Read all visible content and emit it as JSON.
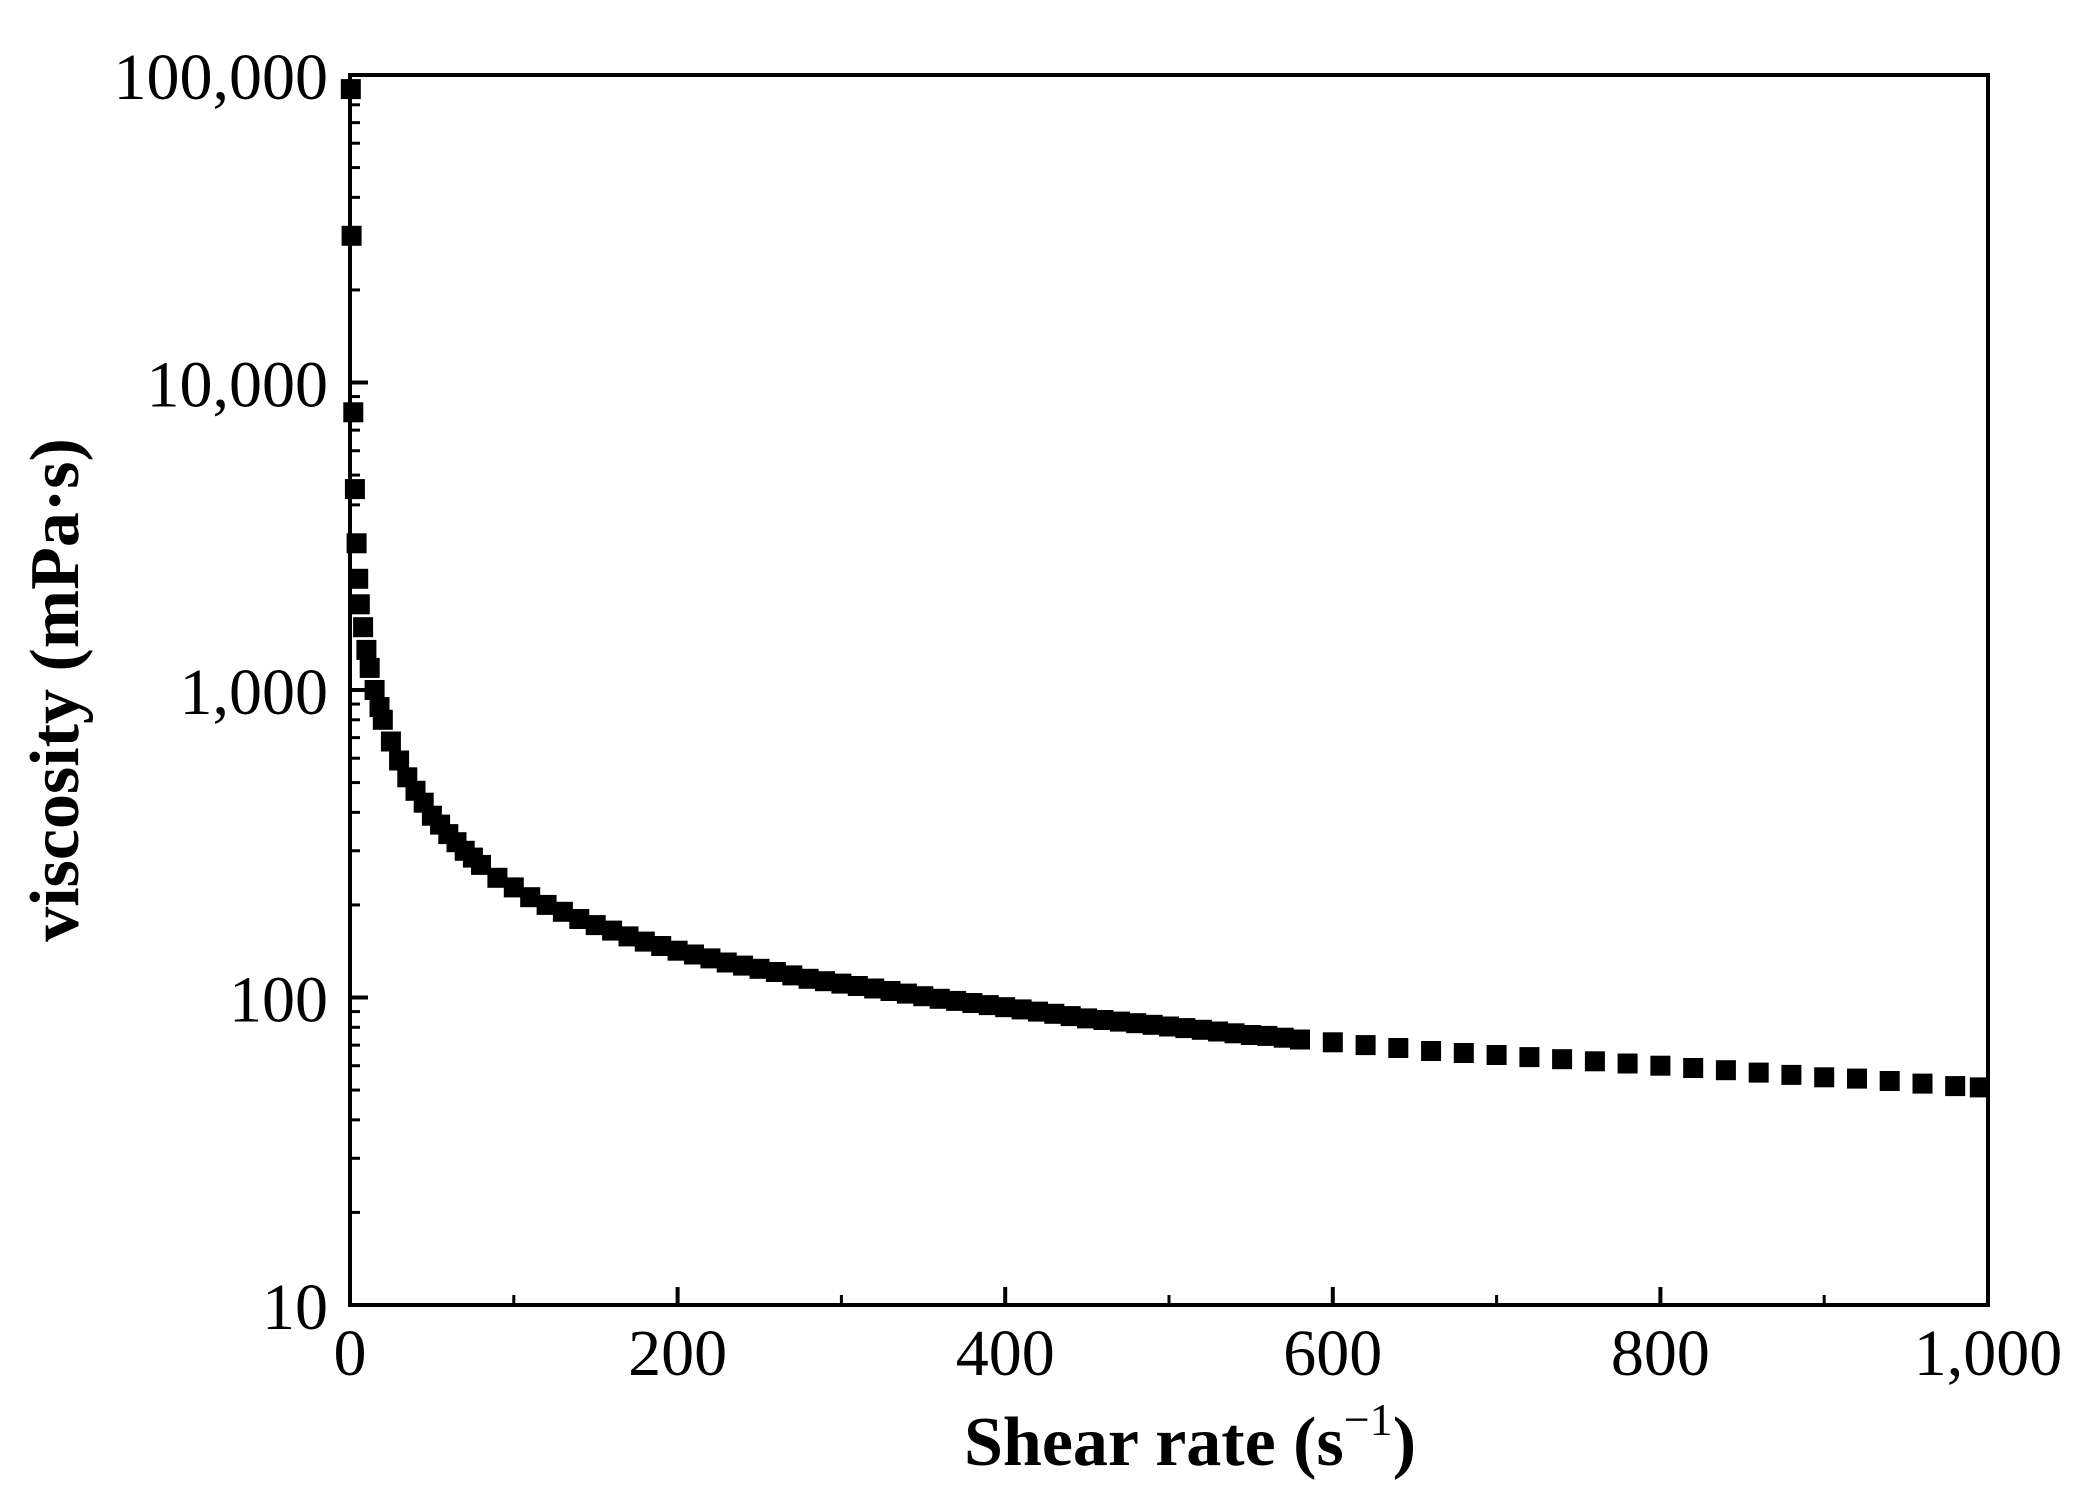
{
  "chart_data": {
    "type": "scatter",
    "title": "",
    "xlabel": "Shear rate (s",
    "xlabel_sup": "−1",
    "xlabel_close": ")",
    "ylabel": "viscosity (mPa·s)",
    "xlim": [
      0,
      1000
    ],
    "ylim": [
      10,
      100000
    ],
    "yscale": "log",
    "x_ticks": [
      0,
      200,
      400,
      600,
      800,
      1000
    ],
    "x_tick_labels": [
      "0",
      "200",
      "400",
      "600",
      "800",
      "1,000"
    ],
    "y_ticks": [
      10,
      100,
      1000,
      10000,
      100000
    ],
    "y_tick_labels": [
      "10",
      "100",
      "1,000",
      "10,000",
      "100,000"
    ],
    "marker": "square",
    "color": "#000000",
    "series": [
      {
        "name": "viscosity",
        "x": [
          0.5,
          1,
          2,
          3,
          4,
          5,
          6,
          8,
          10,
          12,
          15,
          18,
          20,
          25,
          30,
          35,
          40,
          45,
          50,
          55,
          60,
          65,
          70,
          75,
          80,
          90,
          100,
          110,
          120,
          130,
          140,
          150,
          160,
          170,
          180,
          190,
          200,
          210,
          220,
          230,
          240,
          250,
          260,
          270,
          280,
          290,
          300,
          310,
          320,
          330,
          340,
          350,
          360,
          370,
          380,
          390,
          400,
          410,
          420,
          430,
          440,
          450,
          460,
          470,
          480,
          490,
          500,
          510,
          520,
          530,
          540,
          550,
          560,
          570,
          580,
          600,
          620,
          640,
          660,
          680,
          700,
          720,
          740,
          760,
          780,
          800,
          820,
          840,
          860,
          880,
          900,
          920,
          940,
          960,
          980,
          995
        ],
        "y": [
          90000,
          30000,
          8000,
          4500,
          3000,
          2300,
          1900,
          1600,
          1350,
          1180,
          1000,
          880,
          800,
          680,
          590,
          520,
          470,
          430,
          390,
          365,
          340,
          320,
          300,
          285,
          270,
          245,
          228,
          212,
          200,
          190,
          180,
          172,
          165,
          158,
          152,
          147,
          142,
          138,
          134,
          130,
          127,
          124,
          121,
          118,
          115,
          113,
          111,
          109,
          107,
          105,
          103,
          101,
          99,
          97.5,
          96,
          94.5,
          93,
          91.5,
          90,
          88.5,
          87,
          85.5,
          84.5,
          83.5,
          82.5,
          81.5,
          80.5,
          79.5,
          78.5,
          77.5,
          76.5,
          75.5,
          75,
          74,
          73,
          71.5,
          70,
          68.5,
          67,
          66,
          65,
          64,
          63,
          62,
          61,
          60,
          59,
          58,
          57,
          56,
          55,
          54.5,
          53.5,
          52.5,
          51.5,
          51
        ]
      }
    ]
  }
}
